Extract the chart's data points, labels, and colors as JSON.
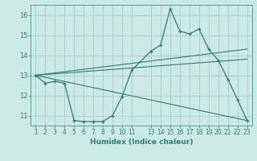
{
  "xlabel": "Humidex (Indice chaleur)",
  "x_values": [
    1,
    2,
    3,
    4,
    5,
    6,
    7,
    8,
    9,
    10,
    11,
    13,
    14,
    15,
    16,
    17,
    18,
    19,
    20,
    21,
    22,
    23
  ],
  "line1": [
    13.0,
    12.6,
    12.7,
    12.6,
    10.75,
    10.7,
    10.7,
    10.7,
    11.0,
    11.95,
    13.25,
    14.2,
    14.5,
    16.3,
    15.2,
    15.05,
    15.3,
    14.3,
    13.75,
    12.8,
    11.8,
    10.75
  ],
  "line2_x": [
    1,
    23
  ],
  "line2_y": [
    13.0,
    14.3
  ],
  "line3_x": [
    1,
    23
  ],
  "line3_y": [
    13.0,
    13.8
  ],
  "line4_x": [
    1,
    23
  ],
  "line4_y": [
    13.0,
    10.75
  ],
  "color": "#2e7d6e",
  "bg_color": "#cce9e6",
  "grid_color": "#aacfcb",
  "ylim": [
    10.5,
    16.5
  ],
  "xlim": [
    0.5,
    23.5
  ],
  "yticks": [
    11,
    12,
    13,
    14,
    15,
    16
  ],
  "xticks": [
    1,
    2,
    3,
    4,
    5,
    6,
    7,
    8,
    9,
    10,
    11,
    13,
    14,
    15,
    16,
    17,
    18,
    19,
    20,
    21,
    22,
    23
  ]
}
